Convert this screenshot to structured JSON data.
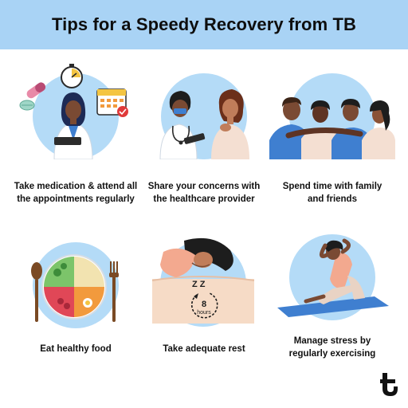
{
  "header": {
    "title": "Tips for a Speedy Recovery from TB"
  },
  "tips": [
    {
      "caption_line1": "Take medication & attend all",
      "caption_line2": "the appointments regularly"
    },
    {
      "caption_line1": "Share your concerns with",
      "caption_line2": "the healthcare provider"
    },
    {
      "caption_line1": "Spend time with family",
      "caption_line2": "and friends"
    },
    {
      "caption_line1": "Eat healthy food",
      "caption_line2": ""
    },
    {
      "caption_line1": "Take adequate rest",
      "caption_line2": ""
    },
    {
      "caption_line1": "Manage stress by",
      "caption_line2": "regularly exercising"
    }
  ],
  "rest_clock": {
    "number": "8",
    "unit": "hours"
  },
  "sleep_letters": "Z Z",
  "colors": {
    "header_bg": "#a9d3f5",
    "circle_bg": "#b4dbf7",
    "skin": "#7a4a33",
    "shirt_blue": "#3f7fd0",
    "peach": "#f3a98f"
  },
  "icons": [
    "pill-capsule-icon",
    "stopwatch-icon",
    "calendar-icon",
    "clipboard-icon",
    "stethoscope-icon",
    "plate-icon",
    "spoon-icon",
    "fork-icon",
    "clock-icon",
    "brand-logo-icon"
  ]
}
